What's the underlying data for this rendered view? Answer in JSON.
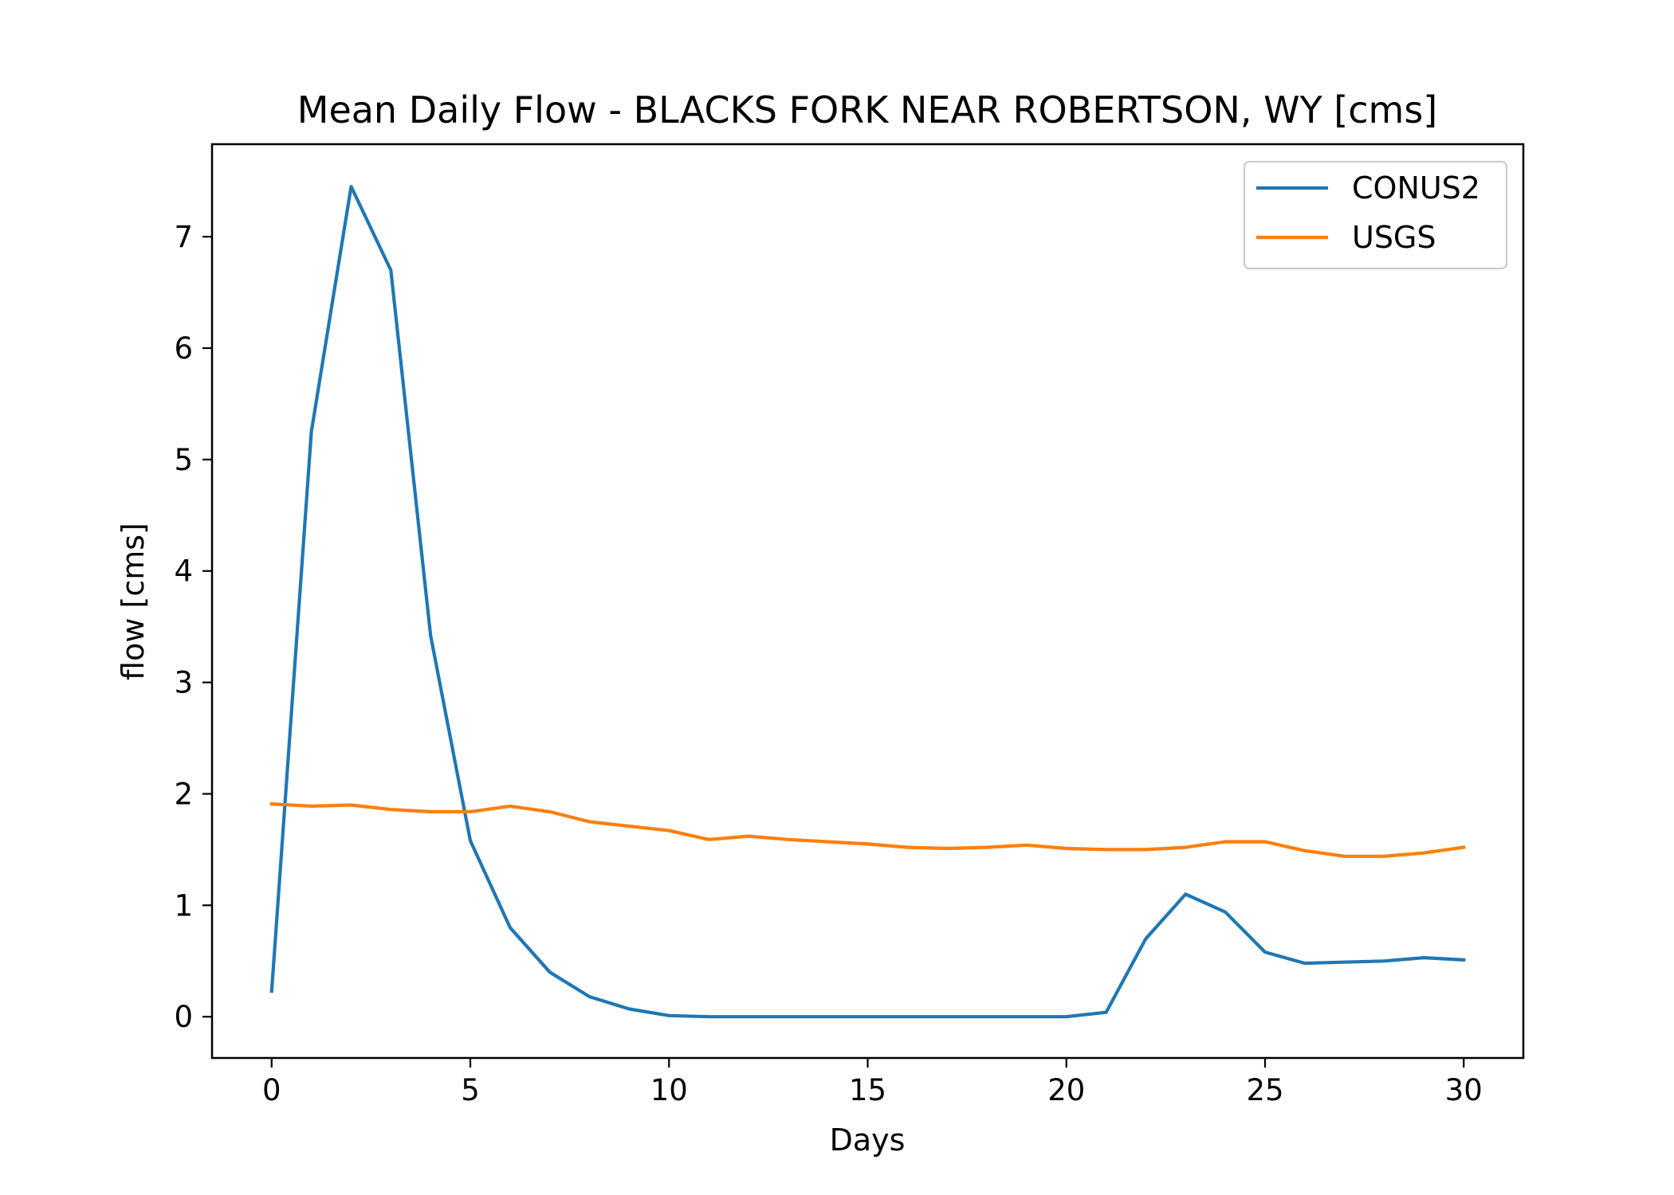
{
  "chart_data": {
    "type": "line",
    "title": "Mean Daily Flow - BLACKS FORK NEAR ROBERTSON, WY [cms]",
    "xlabel": "Days",
    "ylabel": "flow [cms]",
    "xlim": [
      -1.5,
      31.5
    ],
    "ylim": [
      -0.37,
      7.83
    ],
    "xticks": [
      0,
      5,
      10,
      15,
      20,
      25,
      30
    ],
    "yticks": [
      0,
      1,
      2,
      3,
      4,
      5,
      6,
      7
    ],
    "grid": false,
    "legend_position": "top-right",
    "x": [
      0,
      1,
      2,
      3,
      4,
      5,
      6,
      7,
      8,
      9,
      10,
      11,
      12,
      13,
      14,
      15,
      16,
      17,
      18,
      19,
      20,
      21,
      22,
      23,
      24,
      25,
      26,
      27,
      28,
      29,
      30
    ],
    "series": [
      {
        "name": "CONUS2",
        "color": "#1f77b4",
        "values": [
          0.23,
          5.25,
          7.45,
          6.7,
          3.42,
          1.58,
          0.8,
          0.4,
          0.18,
          0.07,
          0.01,
          0.0,
          0.0,
          0.0,
          0.0,
          0.0,
          0.0,
          0.0,
          0.0,
          0.0,
          0.0,
          0.04,
          0.7,
          1.1,
          0.94,
          0.58,
          0.48,
          0.49,
          0.5,
          0.53,
          0.51
        ]
      },
      {
        "name": "USGS",
        "color": "#ff7f0e",
        "values": [
          1.91,
          1.89,
          1.9,
          1.86,
          1.84,
          1.84,
          1.89,
          1.84,
          1.75,
          1.71,
          1.67,
          1.59,
          1.62,
          1.59,
          1.57,
          1.55,
          1.52,
          1.51,
          1.52,
          1.54,
          1.51,
          1.5,
          1.5,
          1.52,
          1.57,
          1.57,
          1.49,
          1.44,
          1.44,
          1.47,
          1.52
        ]
      }
    ]
  }
}
